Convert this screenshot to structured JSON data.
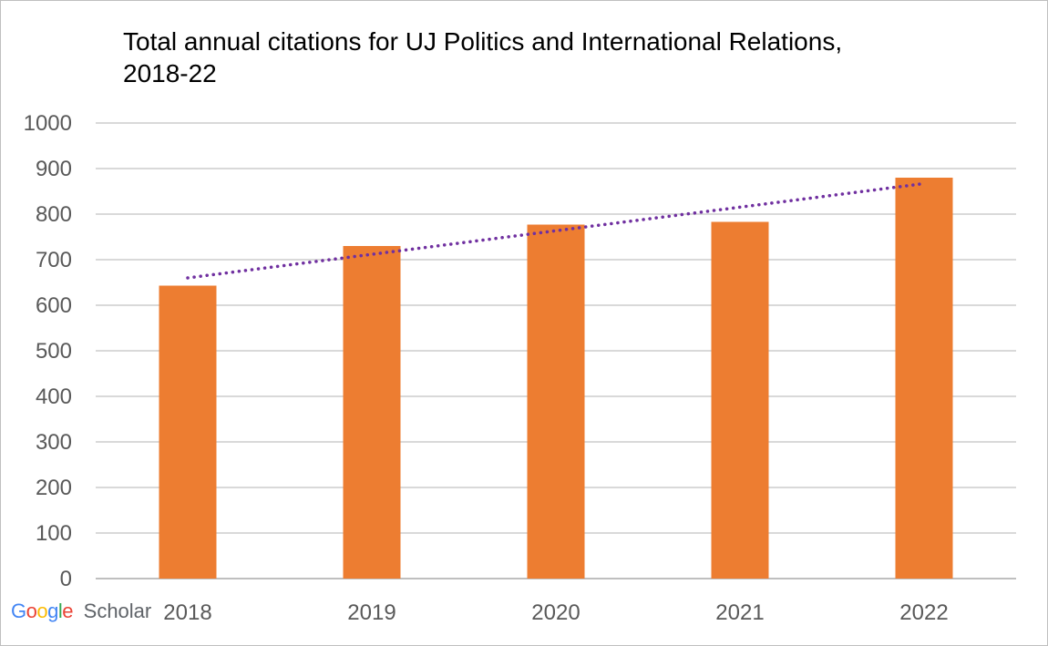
{
  "chart_data": {
    "type": "bar",
    "title_lines": [
      "Total annual citations for UJ Politics and International Relations,",
      "2018-22"
    ],
    "categories": [
      "2018",
      "2019",
      "2020",
      "2021",
      "2022"
    ],
    "values": [
      643,
      730,
      777,
      783,
      880
    ],
    "ylim": [
      0,
      1000
    ],
    "y_ticks": [
      "0",
      "100",
      "200",
      "300",
      "400",
      "500",
      "600",
      "700",
      "800",
      "900",
      "1000"
    ],
    "grid": true,
    "legend": "none",
    "trendline": {
      "type": "linear",
      "style": "dotted",
      "start": 660,
      "end": 867
    },
    "colors": {
      "bar": "#ED7D31",
      "trendline": "#7030A0",
      "grid": "#d9d9d9",
      "axis_text": "#595959"
    }
  },
  "branding": {
    "logo_letters": [
      "G",
      "o",
      "o",
      "g",
      "l",
      "e"
    ],
    "logo_colors": [
      "#4285F4",
      "#EA4335",
      "#FBBC05",
      "#4285F4",
      "#34A853",
      "#EA4335"
    ],
    "suffix": "Scholar"
  }
}
